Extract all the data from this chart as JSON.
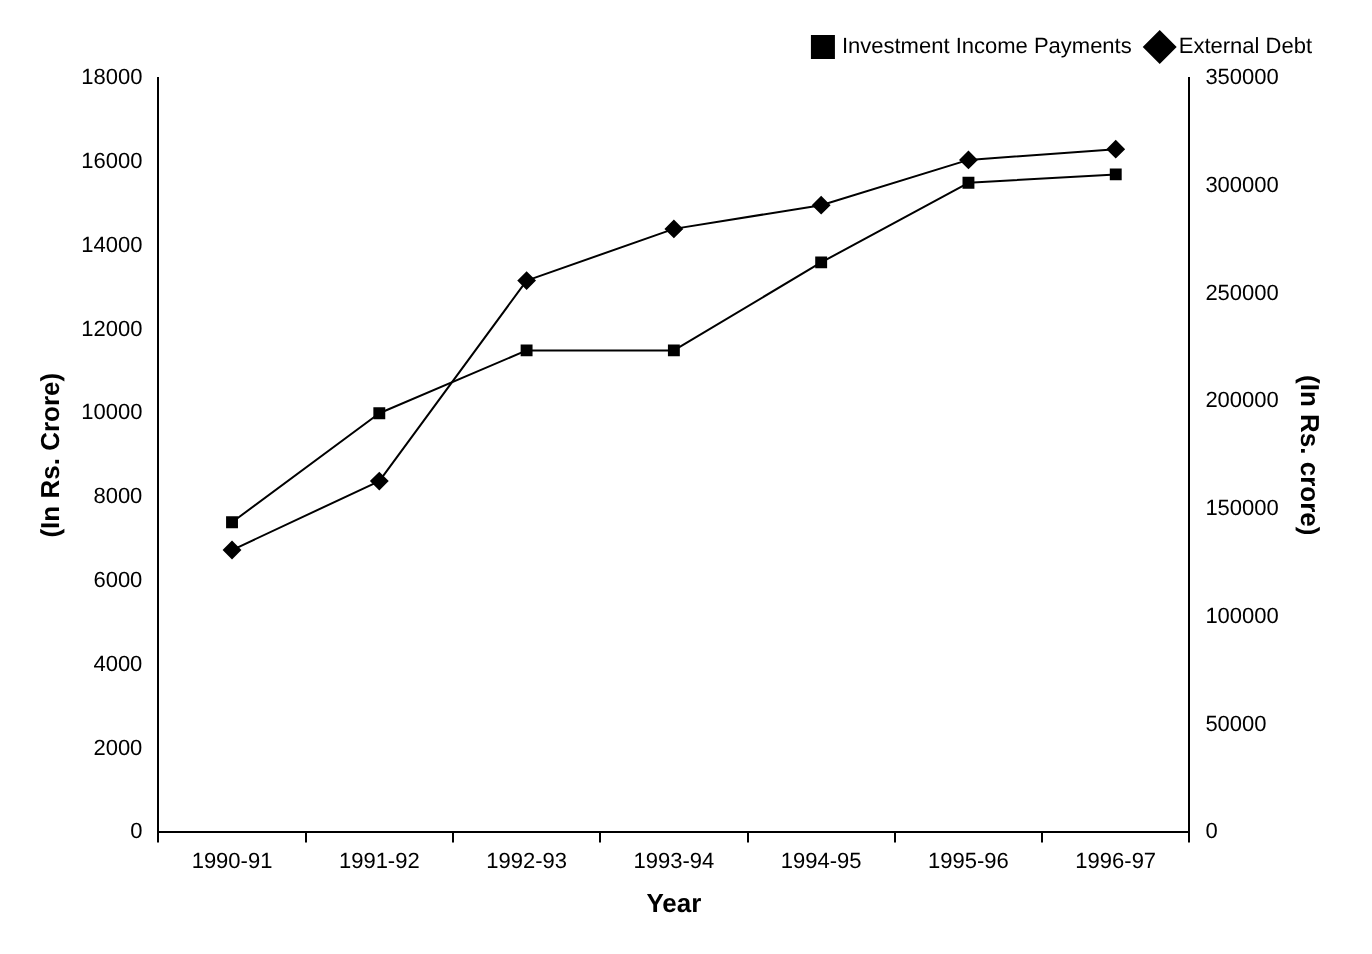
{
  "chart_data": {
    "type": "line",
    "xlabel": "Year",
    "ylabel": "(In Rs. Crore)",
    "y2label": "(In Rs. crore)",
    "categories": [
      "1990-91",
      "1991-92",
      "1992-93",
      "1993-94",
      "1994-95",
      "1995-96",
      "1996-97"
    ],
    "series": [
      {
        "name": "Investment Income Payments",
        "color": "#000000",
        "marker": "square",
        "values": [
          7400,
          10000,
          11500,
          11500,
          13600,
          15500,
          15700
        ]
      },
      {
        "name": "External Debt",
        "color": "#000000",
        "marker": "diamond",
        "axis": "y2",
        "values": [
          131000,
          163000,
          256000,
          280000,
          291000,
          312000,
          317000
        ]
      }
    ],
    "ylim": [
      0,
      18000
    ],
    "yticks": [
      0,
      2000,
      4000,
      6000,
      8000,
      10000,
      12000,
      14000,
      16000,
      18000
    ],
    "y2lim": [
      0,
      350000
    ],
    "y2ticks": [
      0,
      50000,
      100000,
      150000,
      200000,
      250000,
      300000,
      350000
    ],
    "grid": false,
    "legend": "top right",
    "line_style": "solid"
  }
}
